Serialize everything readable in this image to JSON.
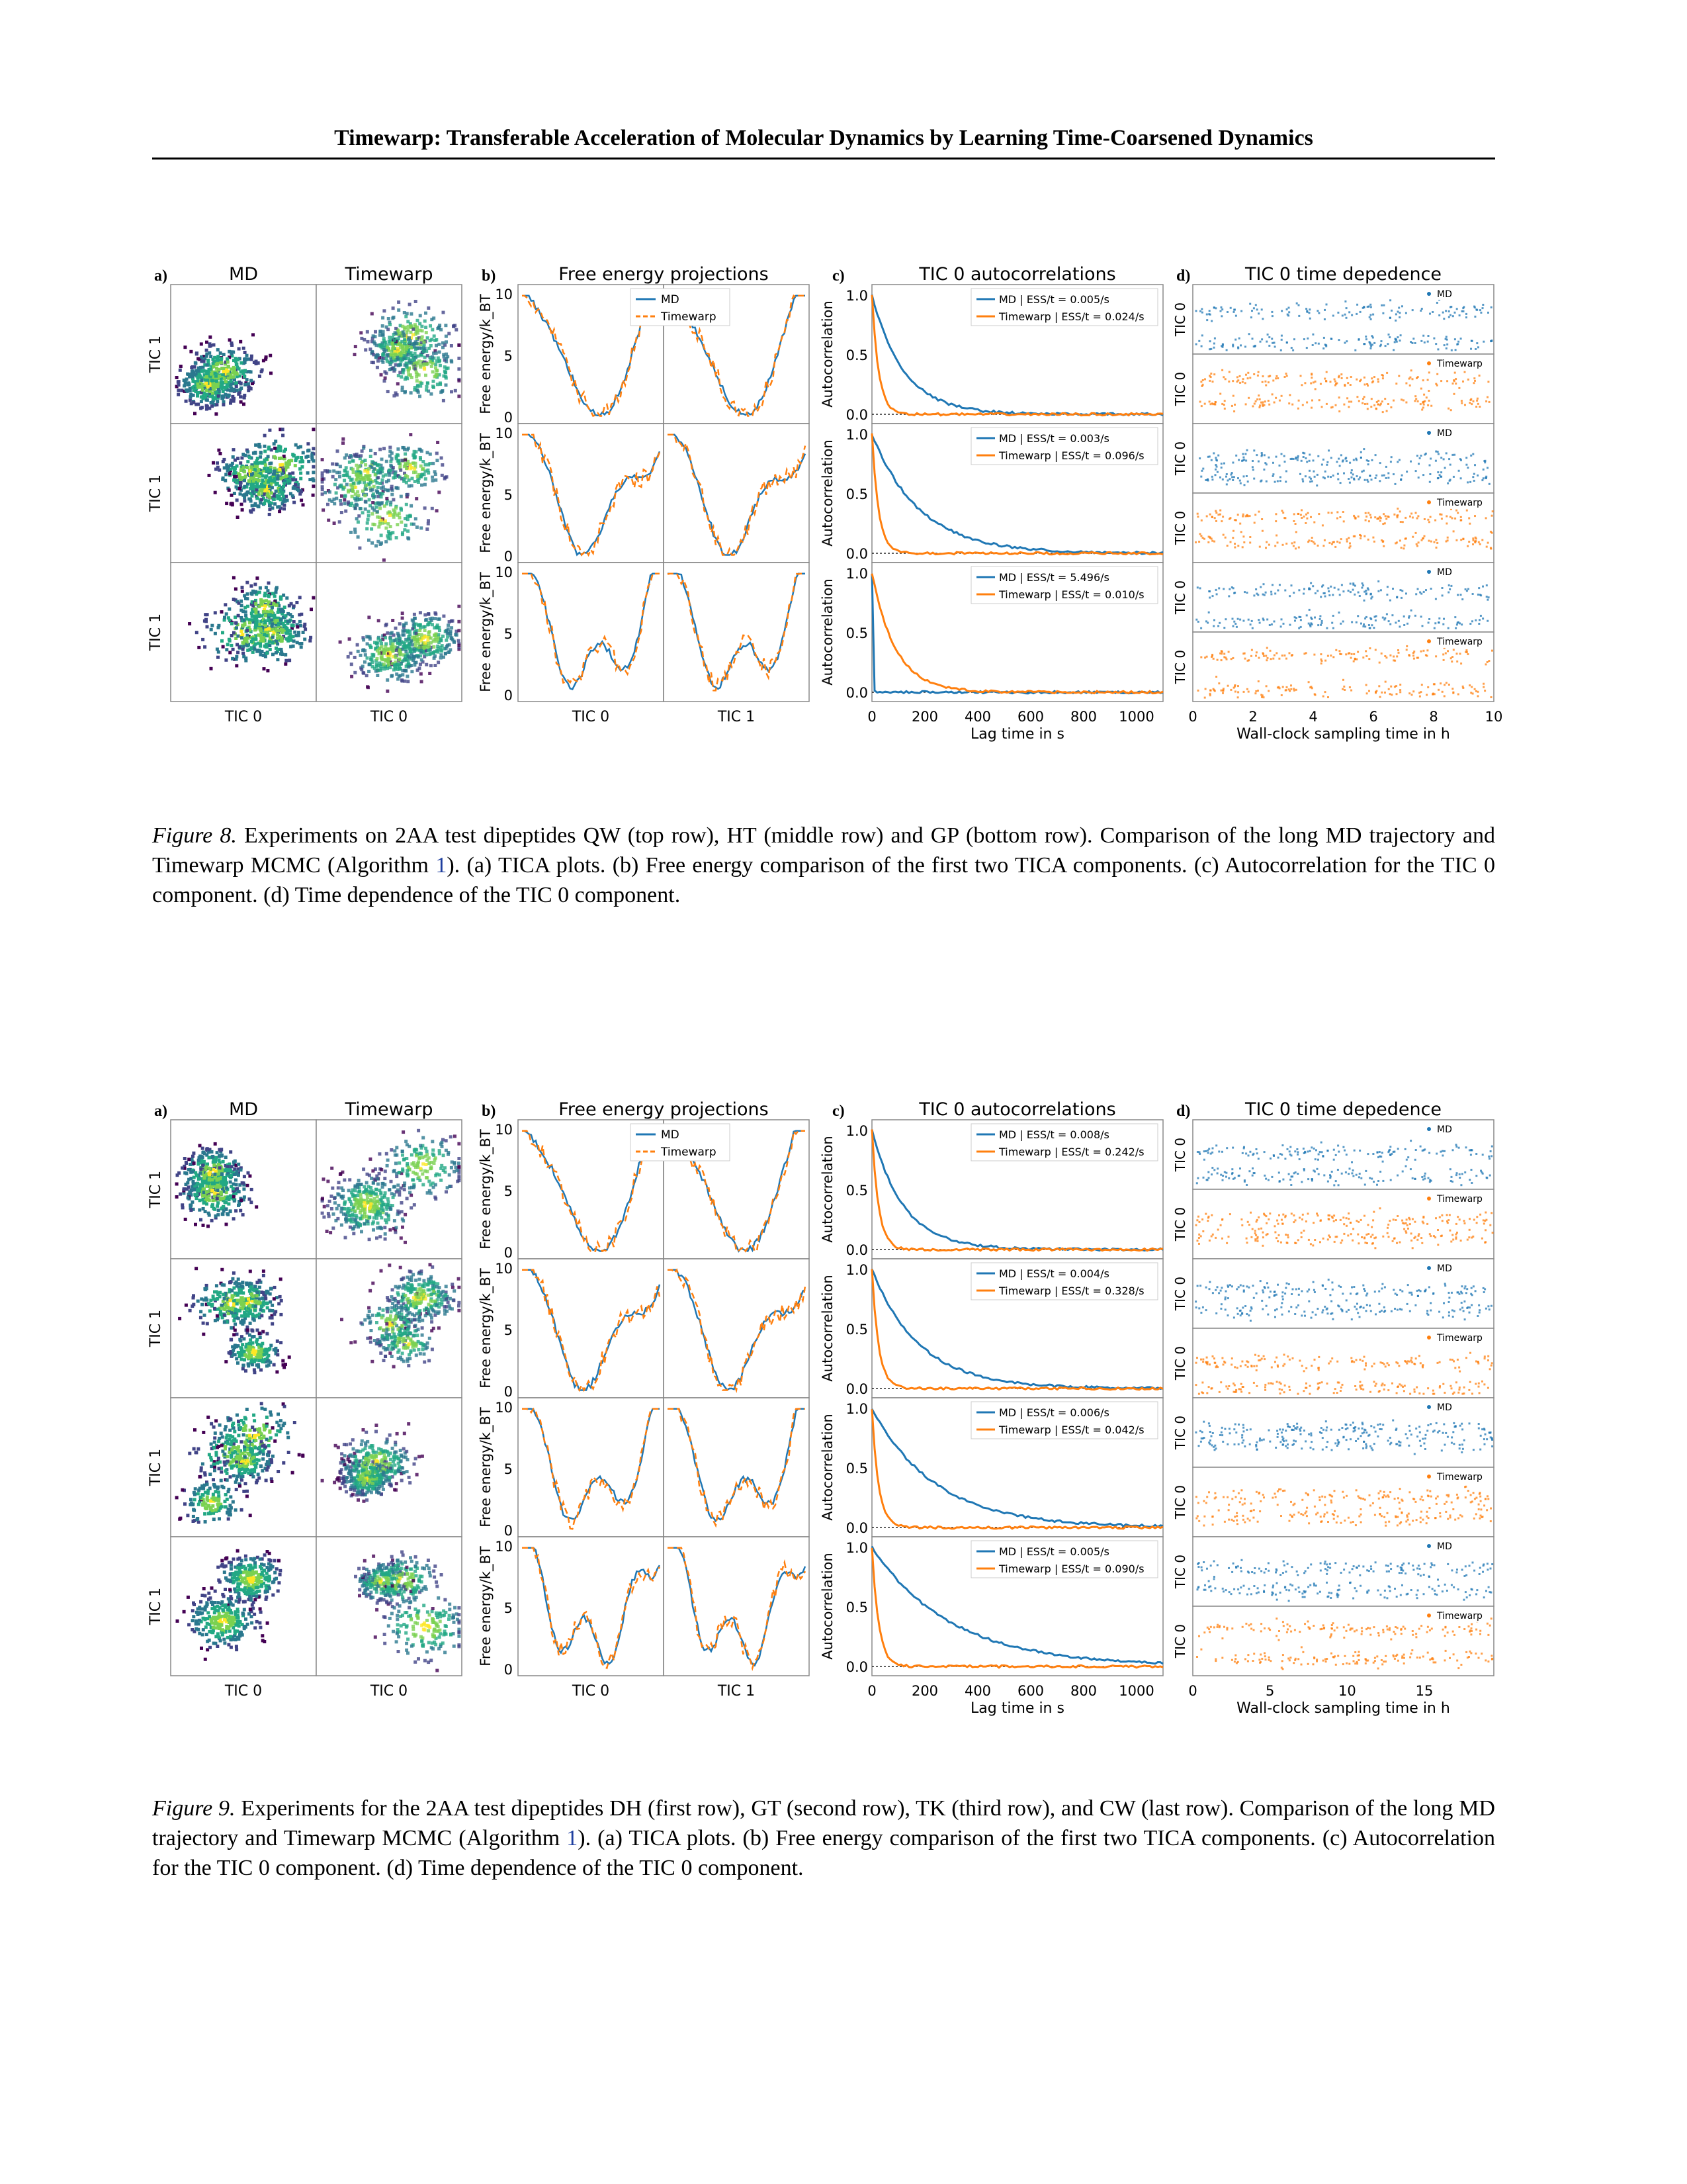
{
  "page": {
    "header": "Timewarp: Transferable Acceleration of Molecular Dynamics by Learning Time-Coarsened Dynamics"
  },
  "colors": {
    "md": "#1f77b4",
    "timewarp": "#ff7f0e",
    "viridis_low": "#440154",
    "viridis_high": "#fde725"
  },
  "figure8": {
    "panel_labels": [
      "a)",
      "b)",
      "c)",
      "d)"
    ],
    "titles": {
      "a_md": "MD",
      "a_tw": "Timewarp",
      "b": "Free energy projections",
      "c": "TIC 0 autocorrelations",
      "d": "TIC 0 time depedence"
    },
    "a_ylabel": "TIC 1",
    "a_xlabels": [
      "TIC 0",
      "TIC 0"
    ],
    "b_ylabel": "Free energy/k_BT",
    "b_yticks": [
      "10",
      "5",
      "0"
    ],
    "b_xlabels": [
      "TIC 0",
      "TIC 1"
    ],
    "b_legend": [
      "MD",
      "Timewarp"
    ],
    "c_ylabel": "Autocorrelation",
    "c_yticks": [
      "1.0",
      "0.5",
      "0.0"
    ],
    "c_xticks": [
      "0",
      "200",
      "400",
      "600",
      "800",
      "1000"
    ],
    "c_xlabel": "Lag time in s",
    "d_ylabel": "TIC 0",
    "d_legend": [
      "MD",
      "Timewarp"
    ],
    "d_xticks": [
      "0",
      "2",
      "4",
      "6",
      "8",
      "10"
    ],
    "d_xlabel": "Wall-clock sampling time in h",
    "rows": [
      {
        "peptide": "QW",
        "legend_md": "MD | ESS/t = 0.005/s",
        "legend_tw": "Timewarp | ESS/t = 0.024/s"
      },
      {
        "peptide": "HT",
        "legend_md": "MD | ESS/t = 0.003/s",
        "legend_tw": "Timewarp | ESS/t = 0.096/s"
      },
      {
        "peptide": "GP",
        "legend_md": "MD | ESS/t = 5.496/s",
        "legend_tw": "Timewarp | ESS/t = 0.010/s"
      }
    ],
    "caption_label": "Figure 8.",
    "caption_text_1": " Experiments on 2AA test dipeptides QW (top row), HT (middle row) and GP (bottom row). Comparison of the long MD trajectory and Timewarp MCMC (Algorithm ",
    "caption_ref": "1",
    "caption_text_2": "). (a) TICA plots. (b) Free energy comparison of the first two TICA components. (c) Autocorrelation for the TIC 0 component. (d) Time dependence of the TIC 0 component."
  },
  "figure9": {
    "panel_labels": [
      "a)",
      "b)",
      "c)",
      "d)"
    ],
    "titles": {
      "a_md": "MD",
      "a_tw": "Timewarp",
      "b": "Free energy projections",
      "c": "TIC 0 autocorrelations",
      "d": "TIC 0 time depedence"
    },
    "a_ylabel": "TIC 1",
    "a_xlabels": [
      "TIC 0",
      "TIC 0"
    ],
    "b_ylabel": "Free energy/k_BT",
    "b_yticks": [
      "10",
      "5",
      "0"
    ],
    "b_xlabels": [
      "TIC 0",
      "TIC 1"
    ],
    "b_legend": [
      "MD",
      "Timewarp"
    ],
    "c_ylabel": "Autocorrelation",
    "c_yticks": [
      "1.0",
      "0.5",
      "0.0"
    ],
    "c_xticks": [
      "0",
      "200",
      "400",
      "600",
      "800",
      "1000"
    ],
    "c_xlabel": "Lag time in s",
    "d_ylabel": "TIC 0",
    "d_legend": [
      "MD",
      "Timewarp"
    ],
    "d_xticks": [
      "0",
      "5",
      "10",
      "15"
    ],
    "d_xlabel": "Wall-clock sampling time in h",
    "rows": [
      {
        "peptide": "DH",
        "legend_md": "MD | ESS/t = 0.008/s",
        "legend_tw": "Timewarp | ESS/t = 0.242/s"
      },
      {
        "peptide": "GT",
        "legend_md": "MD | ESS/t = 0.004/s",
        "legend_tw": "Timewarp | ESS/t = 0.328/s"
      },
      {
        "peptide": "TK",
        "legend_md": "MD | ESS/t = 0.006/s",
        "legend_tw": "Timewarp | ESS/t = 0.042/s"
      },
      {
        "peptide": "CW",
        "legend_md": "MD | ESS/t = 0.005/s",
        "legend_tw": "Timewarp | ESS/t = 0.090/s"
      }
    ],
    "caption_label": "Figure 9.",
    "caption_text_1": " Experiments for the 2AA test dipeptides DH (first row), GT (second row), TK (third row), and CW (last row). Comparison of the long MD trajectory and Timewarp MCMC (Algorithm ",
    "caption_ref": "1",
    "caption_text_2": "). (a) TICA plots. (b) Free energy comparison of the first two TICA components. (c) Autocorrelation for the TIC 0 component. (d) Time dependence of the TIC 0 component."
  }
}
